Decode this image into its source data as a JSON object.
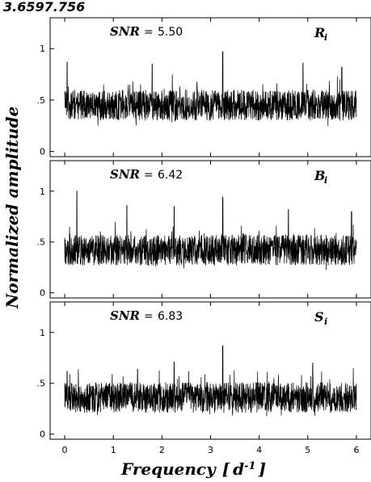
{
  "figure_title": "3.6597.756",
  "ylabel": "Normalized amplitude",
  "xlabel": "Frequency",
  "xlabel_unit_open": "[",
  "xlabel_unit_base": "d",
  "xlabel_unit_exp": "-1",
  "xlabel_unit_close": "]",
  "chart_data": [
    {
      "type": "line",
      "band": "R",
      "band_sub": "i",
      "snr_label": "SNR",
      "snr_eq": "=",
      "snr_value": "5.50",
      "xlim": [
        -0.3,
        6.3
      ],
      "ylim": [
        -0.05,
        1.3
      ],
      "xticks": [
        0,
        1,
        2,
        3,
        4,
        5,
        6
      ],
      "xtick_labels": [
        "0",
        "1",
        "2",
        "3",
        "4",
        "5",
        "6"
      ],
      "yticks": [
        0,
        0.5,
        1
      ],
      "ytick_labels": [
        "0",
        ".5",
        "1"
      ],
      "baseline": 0.45,
      "peaks": [
        {
          "x": 0.05,
          "y": 0.87
        },
        {
          "x": 3.25,
          "y": 0.97
        },
        {
          "x": 1.8,
          "y": 0.85
        },
        {
          "x": 4.9,
          "y": 0.86
        },
        {
          "x": 5.7,
          "y": 0.82
        }
      ]
    },
    {
      "type": "line",
      "band": "B",
      "band_sub": "i",
      "snr_label": "SNR",
      "snr_eq": "=",
      "snr_value": "6.42",
      "xlim": [
        -0.3,
        6.3
      ],
      "ylim": [
        -0.05,
        1.3
      ],
      "xticks": [
        0,
        1,
        2,
        3,
        4,
        5,
        6
      ],
      "xtick_labels": [
        "0",
        "1",
        "2",
        "3",
        "4",
        "5",
        "6"
      ],
      "yticks": [
        0,
        0.5,
        1
      ],
      "ytick_labels": [
        "0",
        ".5",
        "1"
      ],
      "baseline": 0.42,
      "peaks": [
        {
          "x": 0.25,
          "y": 1.0
        },
        {
          "x": 1.28,
          "y": 0.86
        },
        {
          "x": 2.25,
          "y": 0.85
        },
        {
          "x": 3.25,
          "y": 0.94
        },
        {
          "x": 4.6,
          "y": 0.82
        },
        {
          "x": 5.9,
          "y": 0.8
        }
      ]
    },
    {
      "type": "line",
      "band": "S",
      "band_sub": "i",
      "snr_label": "SNR",
      "snr_eq": "=",
      "snr_value": "6.83",
      "xlim": [
        -0.3,
        6.3
      ],
      "ylim": [
        -0.05,
        1.3
      ],
      "xticks": [
        0,
        1,
        2,
        3,
        4,
        5,
        6
      ],
      "xtick_labels": [
        "0",
        "1",
        "2",
        "3",
        "4",
        "5",
        "6"
      ],
      "yticks": [
        0,
        0.5,
        1
      ],
      "ytick_labels": [
        "0",
        ".5",
        "1"
      ],
      "baseline": 0.36,
      "peaks": [
        {
          "x": 0.05,
          "y": 0.62
        },
        {
          "x": 2.25,
          "y": 0.71
        },
        {
          "x": 3.25,
          "y": 0.87
        },
        {
          "x": 5.1,
          "y": 0.7
        },
        {
          "x": 1.5,
          "y": 0.64
        }
      ]
    }
  ]
}
